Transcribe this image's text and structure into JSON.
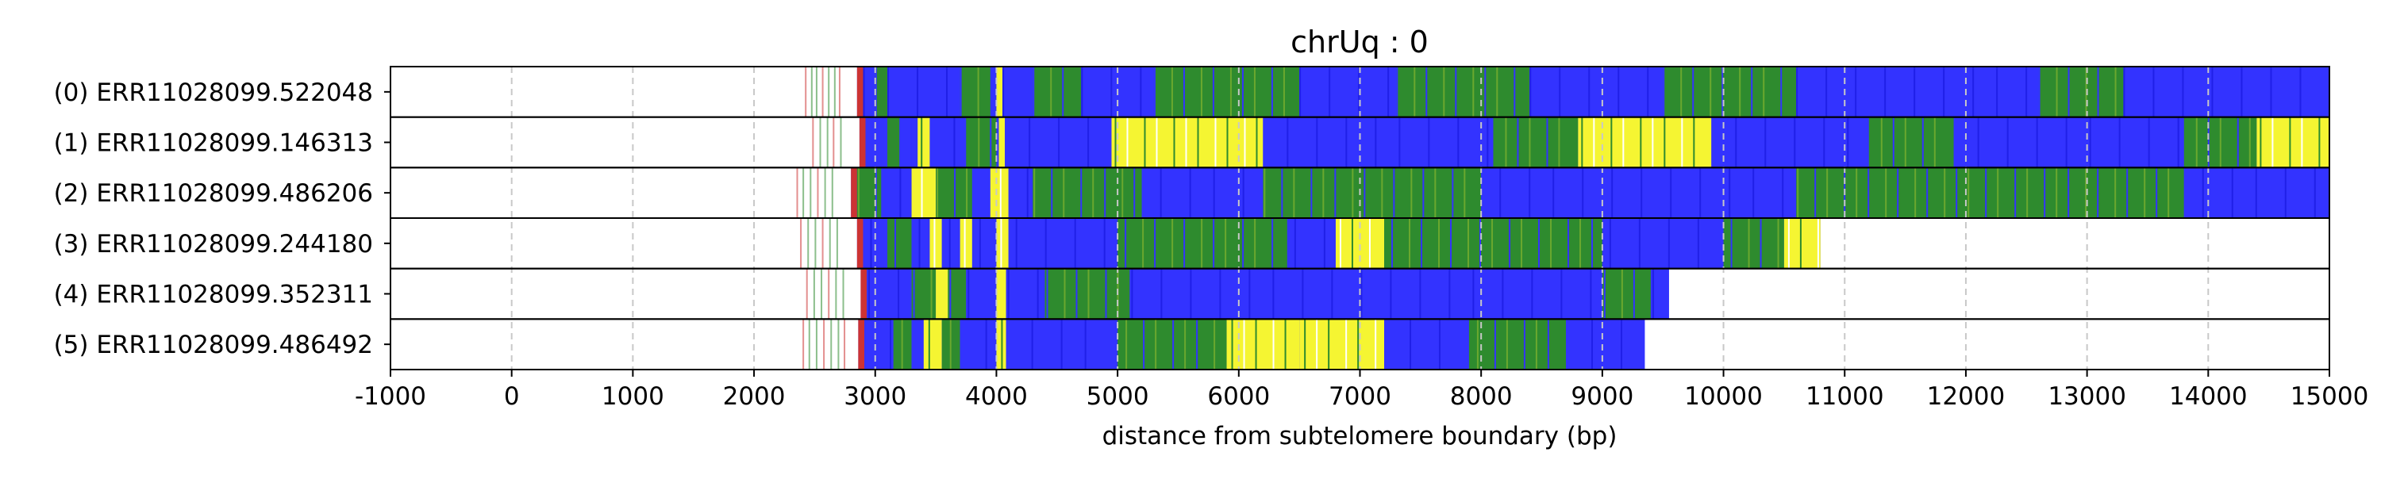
{
  "chart_data": {
    "type": "heatmap",
    "title": "chrUq : 0",
    "xlabel": "distance from subtelomere boundary (bp)",
    "ylabel": "",
    "xlim": [
      -1000,
      15000
    ],
    "x_ticks": [
      -1000,
      0,
      1000,
      2000,
      3000,
      4000,
      5000,
      6000,
      7000,
      8000,
      9000,
      10000,
      11000,
      12000,
      13000,
      14000,
      15000
    ],
    "x_tick_labels": [
      "-1000",
      "0",
      "1000",
      "2000",
      "3000",
      "4000",
      "5000",
      "6000",
      "7000",
      "8000",
      "9000",
      "10000",
      "11000",
      "12000",
      "13000",
      "14000",
      "15000"
    ],
    "grid": "vertical dashed",
    "colors": {
      "blue": "#3333ff",
      "green": "#2e8b2e",
      "yellow": "#f5f532",
      "red": "#cc3333",
      "white": "#ffffff",
      "grid": "#c8c8c8"
    },
    "rows": [
      {
        "label": "(0) ERR11028099.522048",
        "read_end": 15000,
        "thin_lines": [
          2420,
          2470,
          2510,
          2560,
          2610,
          2660,
          2700
        ],
        "segments": [
          {
            "start": 2850,
            "end": 2900,
            "color": "red"
          },
          {
            "start": 2900,
            "end": 3000,
            "color": "blue"
          },
          {
            "start": 3000,
            "end": 3100,
            "color": "green"
          },
          {
            "start": 3100,
            "end": 3700,
            "color": "blue"
          },
          {
            "start": 3700,
            "end": 3950,
            "color": "green"
          },
          {
            "start": 4000,
            "end": 4050,
            "color": "yellow"
          },
          {
            "start": 4050,
            "end": 4300,
            "color": "blue"
          },
          {
            "start": 4300,
            "end": 4700,
            "color": "green"
          },
          {
            "start": 4700,
            "end": 5300,
            "color": "blue"
          },
          {
            "start": 5300,
            "end": 6500,
            "color": "green"
          },
          {
            "start": 6500,
            "end": 7300,
            "color": "blue"
          },
          {
            "start": 7300,
            "end": 8400,
            "color": "green"
          },
          {
            "start": 8400,
            "end": 9500,
            "color": "blue"
          },
          {
            "start": 9500,
            "end": 10600,
            "color": "green"
          },
          {
            "start": 10600,
            "end": 12600,
            "color": "blue"
          },
          {
            "start": 12600,
            "end": 13300,
            "color": "green"
          },
          {
            "start": 13300,
            "end": 15000,
            "color": "blue"
          }
        ]
      },
      {
        "label": "(1) ERR11028099.146313",
        "read_end": 15000,
        "thin_lines": [
          2480,
          2540,
          2600,
          2650,
          2710
        ],
        "segments": [
          {
            "start": 2870,
            "end": 2920,
            "color": "red"
          },
          {
            "start": 2920,
            "end": 3100,
            "color": "blue"
          },
          {
            "start": 3100,
            "end": 3200,
            "color": "green"
          },
          {
            "start": 3200,
            "end": 3300,
            "color": "blue"
          },
          {
            "start": 3350,
            "end": 3450,
            "color": "yellow"
          },
          {
            "start": 3450,
            "end": 3750,
            "color": "blue"
          },
          {
            "start": 3750,
            "end": 4000,
            "color": "green"
          },
          {
            "start": 4020,
            "end": 4070,
            "color": "yellow"
          },
          {
            "start": 4070,
            "end": 4950,
            "color": "blue"
          },
          {
            "start": 4950,
            "end": 6200,
            "color": "yellow"
          },
          {
            "start": 6200,
            "end": 8100,
            "color": "blue"
          },
          {
            "start": 8100,
            "end": 8800,
            "color": "green"
          },
          {
            "start": 8800,
            "end": 9900,
            "color": "yellow"
          },
          {
            "start": 9900,
            "end": 11200,
            "color": "blue"
          },
          {
            "start": 11200,
            "end": 11900,
            "color": "green"
          },
          {
            "start": 11900,
            "end": 13800,
            "color": "blue"
          },
          {
            "start": 13800,
            "end": 14400,
            "color": "green"
          },
          {
            "start": 14400,
            "end": 15000,
            "color": "yellow"
          }
        ]
      },
      {
        "label": "(2) ERR11028099.486206",
        "read_end": 15000,
        "thin_lines": [
          2350,
          2400,
          2460,
          2520,
          2580,
          2640
        ],
        "segments": [
          {
            "start": 2800,
            "end": 2850,
            "color": "red"
          },
          {
            "start": 2850,
            "end": 3050,
            "color": "green"
          },
          {
            "start": 3050,
            "end": 3300,
            "color": "blue"
          },
          {
            "start": 3300,
            "end": 3500,
            "color": "yellow"
          },
          {
            "start": 3500,
            "end": 3800,
            "color": "green"
          },
          {
            "start": 3800,
            "end": 3950,
            "color": "blue"
          },
          {
            "start": 3950,
            "end": 4100,
            "color": "yellow"
          },
          {
            "start": 4100,
            "end": 4300,
            "color": "blue"
          },
          {
            "start": 4300,
            "end": 5200,
            "color": "green"
          },
          {
            "start": 5200,
            "end": 6200,
            "color": "blue"
          },
          {
            "start": 6200,
            "end": 8000,
            "color": "green"
          },
          {
            "start": 8000,
            "end": 10600,
            "color": "blue"
          },
          {
            "start": 10600,
            "end": 13800,
            "color": "green"
          },
          {
            "start": 13800,
            "end": 15000,
            "color": "blue"
          }
        ]
      },
      {
        "label": "(3) ERR11028099.244180",
        "read_end": 10800,
        "thin_lines": [
          2380,
          2440,
          2500,
          2560,
          2620,
          2680
        ],
        "segments": [
          {
            "start": 2850,
            "end": 2900,
            "color": "red"
          },
          {
            "start": 2900,
            "end": 3100,
            "color": "blue"
          },
          {
            "start": 3100,
            "end": 3300,
            "color": "green"
          },
          {
            "start": 3300,
            "end": 3450,
            "color": "blue"
          },
          {
            "start": 3450,
            "end": 3550,
            "color": "yellow"
          },
          {
            "start": 3550,
            "end": 3700,
            "color": "blue"
          },
          {
            "start": 3700,
            "end": 3800,
            "color": "yellow"
          },
          {
            "start": 3800,
            "end": 4000,
            "color": "blue"
          },
          {
            "start": 4000,
            "end": 4100,
            "color": "yellow"
          },
          {
            "start": 4100,
            "end": 5000,
            "color": "blue"
          },
          {
            "start": 5000,
            "end": 6400,
            "color": "green"
          },
          {
            "start": 6400,
            "end": 6800,
            "color": "blue"
          },
          {
            "start": 6800,
            "end": 7200,
            "color": "yellow"
          },
          {
            "start": 7200,
            "end": 9000,
            "color": "green"
          },
          {
            "start": 9000,
            "end": 10000,
            "color": "blue"
          },
          {
            "start": 10000,
            "end": 10500,
            "color": "green"
          },
          {
            "start": 10500,
            "end": 10800,
            "color": "yellow"
          }
        ]
      },
      {
        "label": "(4) ERR11028099.352311",
        "read_end": 9550,
        "thin_lines": [
          2430,
          2490,
          2550,
          2610,
          2670,
          2730
        ],
        "segments": [
          {
            "start": 2880,
            "end": 2930,
            "color": "red"
          },
          {
            "start": 2930,
            "end": 3300,
            "color": "blue"
          },
          {
            "start": 3300,
            "end": 3500,
            "color": "green"
          },
          {
            "start": 3500,
            "end": 3600,
            "color": "yellow"
          },
          {
            "start": 3600,
            "end": 3750,
            "color": "green"
          },
          {
            "start": 3750,
            "end": 4000,
            "color": "blue"
          },
          {
            "start": 4000,
            "end": 4080,
            "color": "yellow"
          },
          {
            "start": 4080,
            "end": 4400,
            "color": "blue"
          },
          {
            "start": 4400,
            "end": 5100,
            "color": "green"
          },
          {
            "start": 5100,
            "end": 9000,
            "color": "blue"
          },
          {
            "start": 9000,
            "end": 9400,
            "color": "green"
          },
          {
            "start": 9400,
            "end": 9550,
            "color": "blue"
          }
        ]
      },
      {
        "label": "(5) ERR11028099.486492",
        "read_end": 9350,
        "thin_lines": [
          2400,
          2450,
          2510,
          2570,
          2630,
          2690,
          2740
        ],
        "segments": [
          {
            "start": 2860,
            "end": 2910,
            "color": "red"
          },
          {
            "start": 2910,
            "end": 3150,
            "color": "blue"
          },
          {
            "start": 3150,
            "end": 3300,
            "color": "green"
          },
          {
            "start": 3300,
            "end": 3400,
            "color": "blue"
          },
          {
            "start": 3400,
            "end": 3550,
            "color": "yellow"
          },
          {
            "start": 3550,
            "end": 3700,
            "color": "green"
          },
          {
            "start": 3700,
            "end": 4000,
            "color": "blue"
          },
          {
            "start": 4000,
            "end": 4080,
            "color": "yellow"
          },
          {
            "start": 4080,
            "end": 5000,
            "color": "blue"
          },
          {
            "start": 5000,
            "end": 5900,
            "color": "green"
          },
          {
            "start": 5900,
            "end": 6500,
            "color": "yellow"
          },
          {
            "start": 6500,
            "end": 7200,
            "color": "yellow"
          },
          {
            "start": 7200,
            "end": 7900,
            "color": "blue"
          },
          {
            "start": 7900,
            "end": 8700,
            "color": "green"
          },
          {
            "start": 8700,
            "end": 9350,
            "color": "blue"
          }
        ]
      }
    ]
  }
}
